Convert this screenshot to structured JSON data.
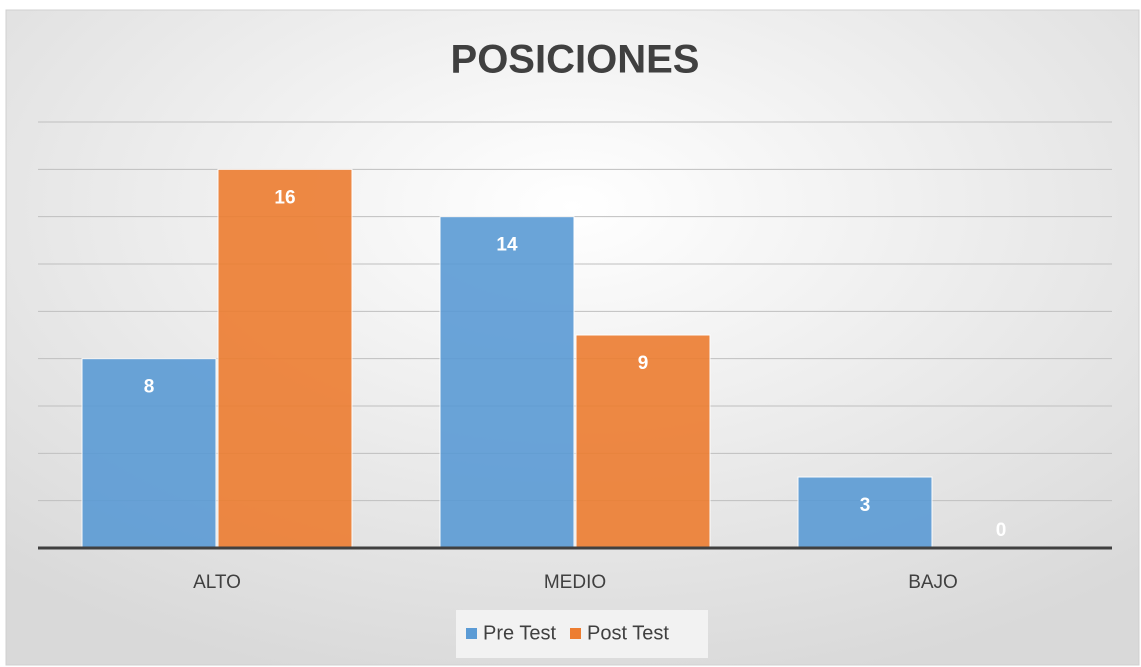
{
  "chart_data": {
    "type": "bar",
    "title": "POSICIONES",
    "categories": [
      "ALTO",
      "MEDIO",
      "BAJO"
    ],
    "series": [
      {
        "name": "Pre Test",
        "color": "#5b9bd5",
        "values": [
          8,
          14,
          3
        ]
      },
      {
        "name": "Post Test",
        "color": "#ed7d31",
        "values": [
          16,
          9,
          0
        ]
      }
    ],
    "ylim": [
      0,
      18
    ],
    "yticks": [
      0,
      2,
      4,
      6,
      8,
      10,
      12,
      14,
      16,
      18
    ],
    "grid": true,
    "ytick_labels": false,
    "legend": "bottom",
    "data_labels": true
  }
}
